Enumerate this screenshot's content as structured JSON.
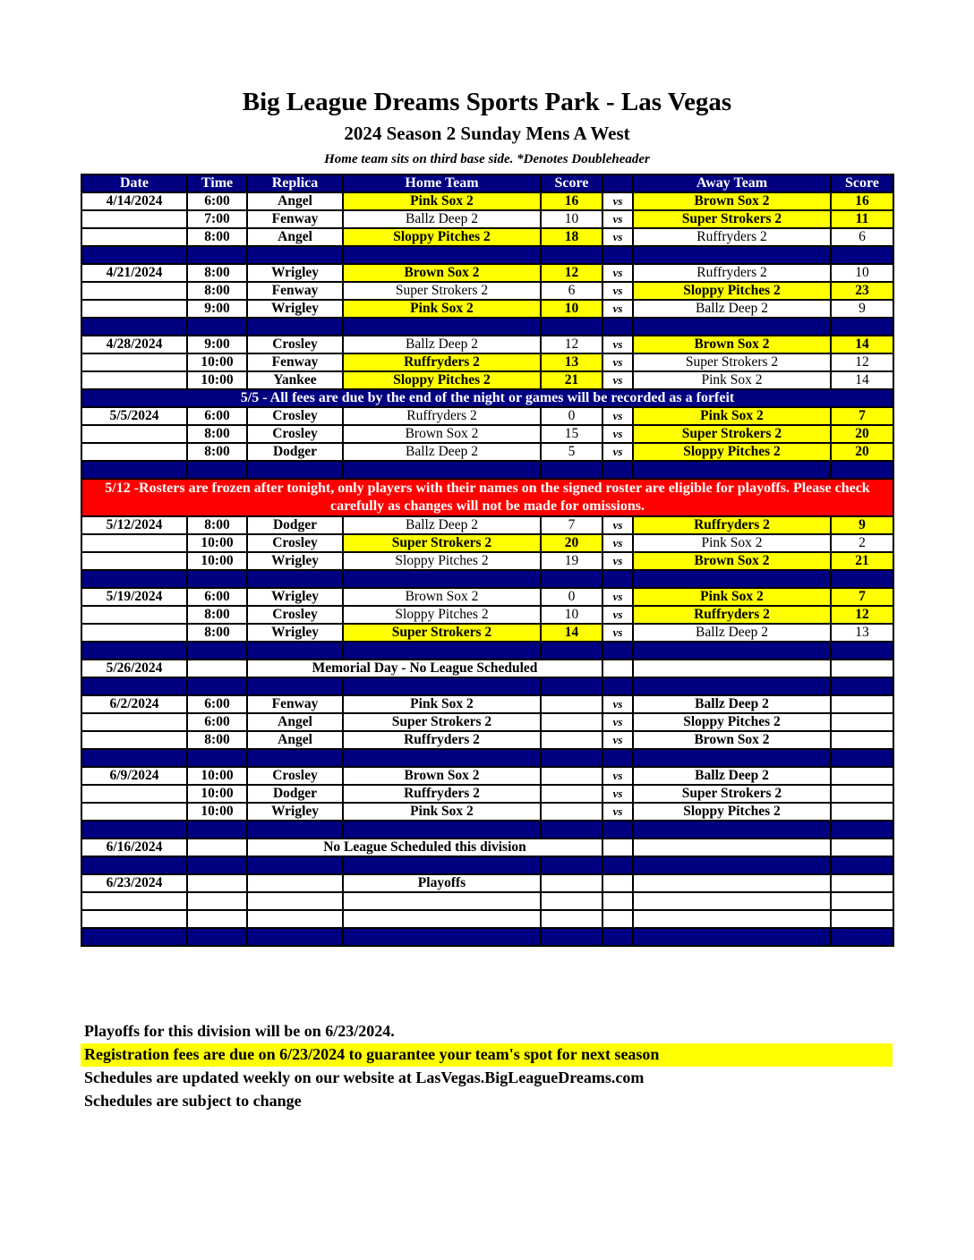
{
  "header": {
    "title": "Big League Dreams Sports Park - Las Vegas",
    "subtitle": "2024 Season 2 Sunday Mens A West",
    "note": "Home team sits on third base side.  *Denotes Doubleheader"
  },
  "colors": {
    "header_bg": "#000080",
    "winner_bg": "#ffff00",
    "alert_bg": "#ff0000"
  },
  "columns": [
    "Date",
    "Time",
    "Replica",
    "Home Team",
    "Score",
    "",
    "Away Team",
    "Score"
  ],
  "rows": [
    {
      "date": "4/14/2024",
      "time": "6:00",
      "replica": "Angel",
      "home": "Pink Sox 2",
      "hs": "16",
      "vs": "vs",
      "away": "Brown Sox 2",
      "as": "16",
      "winner": "both"
    },
    {
      "date": "",
      "time": "7:00",
      "replica": "Fenway",
      "home": "Ballz Deep 2",
      "hs": "10",
      "vs": "vs",
      "away": "Super Strokers 2",
      "as": "11",
      "winner": "away"
    },
    {
      "date": "",
      "time": "8:00",
      "replica": "Angel",
      "home": "Sloppy Pitches 2",
      "hs": "18",
      "vs": "vs",
      "away": "Ruffryders 2",
      "as": "6",
      "winner": "home"
    },
    {
      "type": "spacer"
    },
    {
      "date": "4/21/2024",
      "time": "8:00",
      "replica": "Wrigley",
      "home": "Brown Sox 2",
      "hs": "12",
      "vs": "vs",
      "away": "Ruffryders 2",
      "as": "10",
      "winner": "home"
    },
    {
      "date": "",
      "time": "8:00",
      "replica": "Fenway",
      "home": "Super Strokers 2",
      "hs": "6",
      "vs": "vs",
      "away": "Sloppy Pitches 2",
      "as": "23",
      "winner": "away"
    },
    {
      "date": "",
      "time": "9:00",
      "replica": "Wrigley",
      "home": "Pink Sox 2",
      "hs": "10",
      "vs": "vs",
      "away": "Ballz Deep 2",
      "as": "9",
      "winner": "home"
    },
    {
      "type": "spacer"
    },
    {
      "date": "4/28/2024",
      "time": "9:00",
      "replica": "Crosley",
      "home": "Ballz Deep 2",
      "hs": "12",
      "vs": "vs",
      "away": "Brown Sox 2",
      "as": "14",
      "winner": "away"
    },
    {
      "date": "",
      "time": "10:00",
      "replica": "Fenway",
      "home": "Ruffryders 2",
      "hs": "13",
      "vs": "vs",
      "away": "Super Strokers 2",
      "as": "12",
      "winner": "home"
    },
    {
      "date": "",
      "time": "10:00",
      "replica": "Yankee",
      "home": "Sloppy Pitches 2",
      "hs": "21",
      "vs": "vs",
      "away": "Pink Sox 2",
      "as": "14",
      "winner": "home"
    },
    {
      "type": "notice",
      "color": "blue",
      "text": "5/5 - All fees are due by the end of the night or games will be recorded as a forfeit"
    },
    {
      "date": "5/5/2024",
      "time": "6:00",
      "replica": "Crosley",
      "home": "Ruffryders 2",
      "hs": "0",
      "vs": "vs",
      "away": "Pink Sox 2",
      "as": "7",
      "winner": "away"
    },
    {
      "date": "",
      "time": "8:00",
      "replica": "Crosley",
      "home": "Brown Sox 2",
      "hs": "15",
      "vs": "vs",
      "away": "Super Strokers 2",
      "as": "20",
      "winner": "away"
    },
    {
      "date": "",
      "time": "8:00",
      "replica": "Dodger",
      "home": "Ballz Deep 2",
      "hs": "5",
      "vs": "vs",
      "away": "Sloppy Pitches 2",
      "as": "20",
      "winner": "away"
    },
    {
      "type": "spacer"
    },
    {
      "type": "notice",
      "color": "red",
      "text": "5/12 -Rosters are frozen after tonight, only players with their names on the signed roster are eligible for playoffs. Please check carefully as changes will not be made for omissions."
    },
    {
      "date": "5/12/2024",
      "time": "8:00",
      "replica": "Dodger",
      "home": "Ballz Deep 2",
      "hs": "7",
      "vs": "vs",
      "away": "Ruffryders 2",
      "as": "9",
      "winner": "away"
    },
    {
      "date": "",
      "time": "10:00",
      "replica": "Crosley",
      "home": "Super Strokers 2",
      "hs": "20",
      "vs": "vs",
      "away": "Pink Sox 2",
      "as": "2",
      "winner": "home"
    },
    {
      "date": "",
      "time": "10:00",
      "replica": "Wrigley",
      "home": "Sloppy Pitches 2",
      "hs": "19",
      "vs": "vs",
      "away": "Brown Sox 2",
      "as": "21",
      "winner": "away"
    },
    {
      "type": "spacer"
    },
    {
      "date": "5/19/2024",
      "time": "6:00",
      "replica": "Wrigley",
      "home": "Brown Sox 2",
      "hs": "0",
      "vs": "vs",
      "away": "Pink Sox 2",
      "as": "7",
      "winner": "away"
    },
    {
      "date": "",
      "time": "8:00",
      "replica": "Crosley",
      "home": "Sloppy Pitches 2",
      "hs": "10",
      "vs": "vs",
      "away": "Ruffryders 2",
      "as": "12",
      "winner": "away"
    },
    {
      "date": "",
      "time": "8:00",
      "replica": "Wrigley",
      "home": "Super Strokers 2",
      "hs": "14",
      "vs": "vs",
      "away": "Ballz Deep 2",
      "as": "13",
      "winner": "home"
    },
    {
      "type": "spacer"
    },
    {
      "type": "message",
      "date": "5/26/2024",
      "text": "Memorial Day - No League Scheduled"
    },
    {
      "type": "spacer"
    },
    {
      "date": "6/2/2024",
      "time": "6:00",
      "replica": "Fenway",
      "home": "Pink Sox 2",
      "hs": "",
      "vs": "vs",
      "away": "Ballz Deep 2",
      "as": "",
      "winner": "none"
    },
    {
      "date": "",
      "time": "6:00",
      "replica": "Angel",
      "home": "Super Strokers 2",
      "hs": "",
      "vs": "vs",
      "away": "Sloppy Pitches 2",
      "as": "",
      "winner": "none"
    },
    {
      "date": "",
      "time": "8:00",
      "replica": "Angel",
      "home": "Ruffryders 2",
      "hs": "",
      "vs": "vs",
      "away": "Brown Sox 2",
      "as": "",
      "winner": "none"
    },
    {
      "type": "spacer"
    },
    {
      "date": "6/9/2024",
      "time": "10:00",
      "replica": "Crosley",
      "home": "Brown Sox 2",
      "hs": "",
      "vs": "vs",
      "away": "Ballz Deep 2",
      "as": "",
      "winner": "none"
    },
    {
      "date": "",
      "time": "10:00",
      "replica": "Dodger",
      "home": "Ruffryders 2",
      "hs": "",
      "vs": "vs",
      "away": "Super Strokers 2",
      "as": "",
      "winner": "none"
    },
    {
      "date": "",
      "time": "10:00",
      "replica": "Wrigley",
      "home": "Pink Sox 2",
      "hs": "",
      "vs": "vs",
      "away": "Sloppy Pitches 2",
      "as": "",
      "winner": "none"
    },
    {
      "type": "spacer"
    },
    {
      "type": "message",
      "date": "6/16/2024",
      "text": "No League Scheduled this division"
    },
    {
      "type": "spacer"
    },
    {
      "type": "message",
      "date": "6/23/2024",
      "text": "Playoffs",
      "split": true
    },
    {
      "type": "blank"
    },
    {
      "type": "blank"
    },
    {
      "type": "spacer"
    }
  ],
  "footer": {
    "line1": "Playoffs for this division will be on 6/23/2024.",
    "line2": "Registration fees are due on 6/23/2024 to guarantee your team's spot for next season",
    "line3": "Schedules are updated weekly on our website at LasVegas.BigLeagueDreams.com",
    "line4": "Schedules are subject to change"
  }
}
